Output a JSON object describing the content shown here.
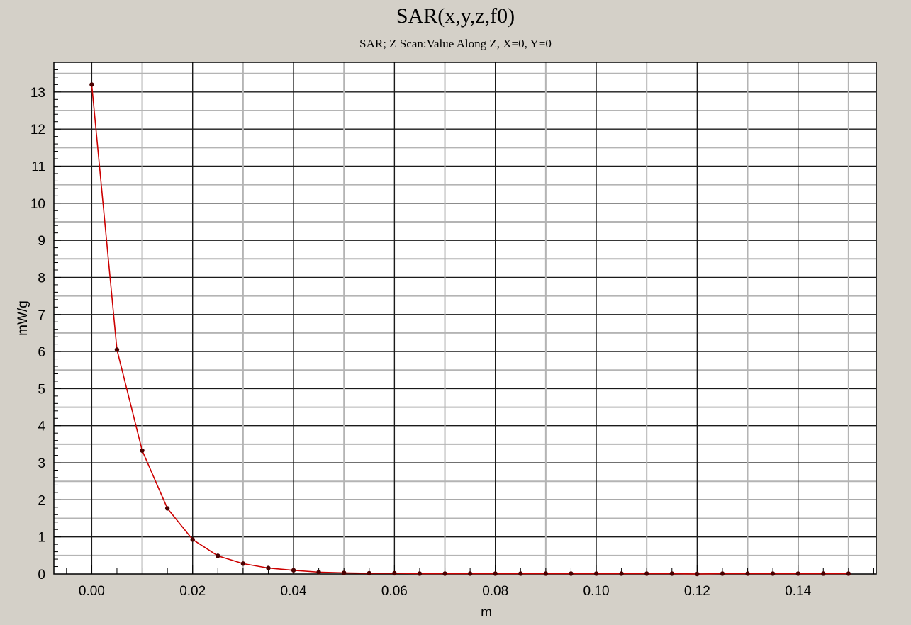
{
  "chart_data": {
    "type": "line",
    "title": "SAR(x,y,z,f0)",
    "subtitle": "SAR; Z Scan:Value Along Z, X=0, Y=0",
    "xlabel": "m",
    "ylabel": "mW/g",
    "xlim": [
      -0.0075,
      0.1555
    ],
    "ylim": [
      0,
      13.8
    ],
    "x_ticks": [
      "0.00",
      "0.02",
      "0.04",
      "0.06",
      "0.08",
      "0.10",
      "0.12",
      "0.14"
    ],
    "y_ticks": [
      "0",
      "1",
      "2",
      "3",
      "4",
      "5",
      "6",
      "7",
      "8",
      "9",
      "10",
      "11",
      "12",
      "13"
    ],
    "grid": true,
    "legend": "none",
    "series": [
      {
        "color": "#cc0000",
        "marker_color": "#4a0000",
        "x": [
          0.0,
          0.005,
          0.01,
          0.015,
          0.02,
          0.025,
          0.03,
          0.035,
          0.04,
          0.045,
          0.05,
          0.055,
          0.06,
          0.065,
          0.07,
          0.075,
          0.08,
          0.085,
          0.09,
          0.095,
          0.1,
          0.105,
          0.11,
          0.115,
          0.12,
          0.125,
          0.13,
          0.135,
          0.14,
          0.145,
          0.15
        ],
        "y": [
          13.2,
          6.05,
          3.33,
          1.77,
          0.93,
          0.49,
          0.28,
          0.16,
          0.1,
          0.05,
          0.03,
          0.02,
          0.02,
          0.01,
          0.01,
          0.01,
          0.01,
          0.01,
          0.01,
          0.01,
          0.01,
          0.01,
          0.01,
          0.01,
          0.0,
          0.01,
          0.01,
          0.01,
          0.01,
          0.01,
          0.01
        ]
      }
    ]
  }
}
